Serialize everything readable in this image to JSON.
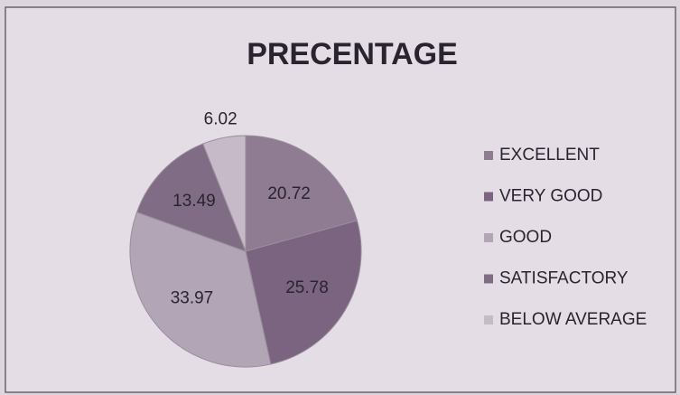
{
  "chart_data": {
    "type": "pie",
    "title": "PRECENTAGE",
    "categories": [
      "EXCELLENT",
      "VERY GOOD",
      "GOOD",
      "SATISFACTORY",
      "BELOW AVERAGE"
    ],
    "values": [
      20.72,
      25.78,
      33.97,
      13.49,
      6.02
    ],
    "colors": [
      "#8f7b92",
      "#7a6480",
      "#b2a5b6",
      "#806d85",
      "#c6bac8"
    ],
    "legend": "right"
  }
}
